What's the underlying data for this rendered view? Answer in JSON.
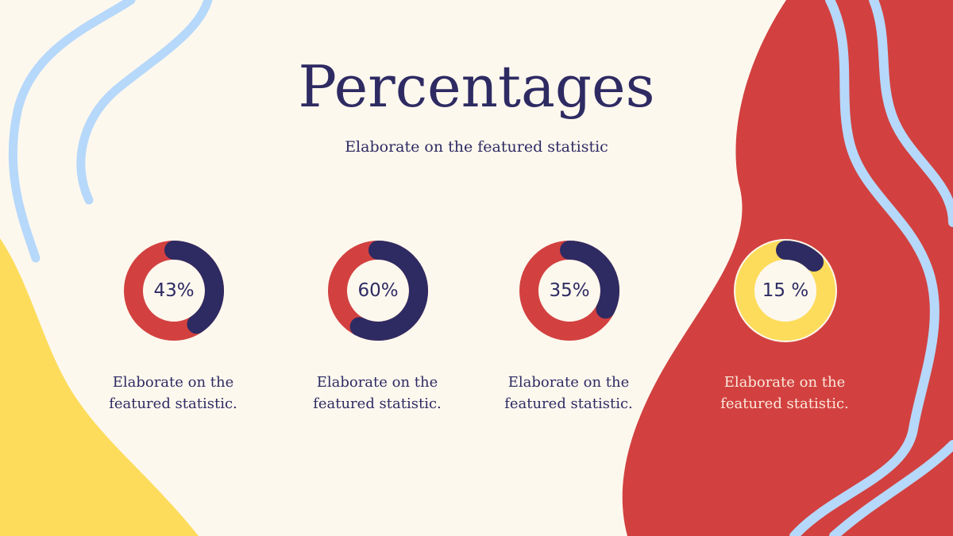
{
  "slide": {
    "title": "Percentages",
    "subtitle": "Elaborate on the featured statistic"
  },
  "colors": {
    "background": "#fdf8ee",
    "navy": "#2e2b63",
    "red": "#d24140",
    "yellow": "#fddc5c",
    "light_blue": "#b6d8fa",
    "light_text": "#fbe9dc"
  },
  "stats": [
    {
      "label": "43%",
      "value": 43,
      "desc_line1": "Elaborate on the",
      "desc_line2": "featured statistic.",
      "track_color": "#d24140",
      "fill_color": "#2e2b63"
    },
    {
      "label": "60%",
      "value": 60,
      "desc_line1": "Elaborate on the",
      "desc_line2": "featured statistic.",
      "track_color": "#d24140",
      "fill_color": "#2e2b63"
    },
    {
      "label": "35%",
      "value": 35,
      "desc_line1": "Elaborate on the",
      "desc_line2": "featured statistic.",
      "track_color": "#d24140",
      "fill_color": "#2e2b63"
    },
    {
      "label": "15 %",
      "value": 15,
      "desc_line1": "Elaborate on the",
      "desc_line2": "featured statistic.",
      "track_color": "#fddc5c",
      "fill_color": "#2e2b63"
    }
  ]
}
